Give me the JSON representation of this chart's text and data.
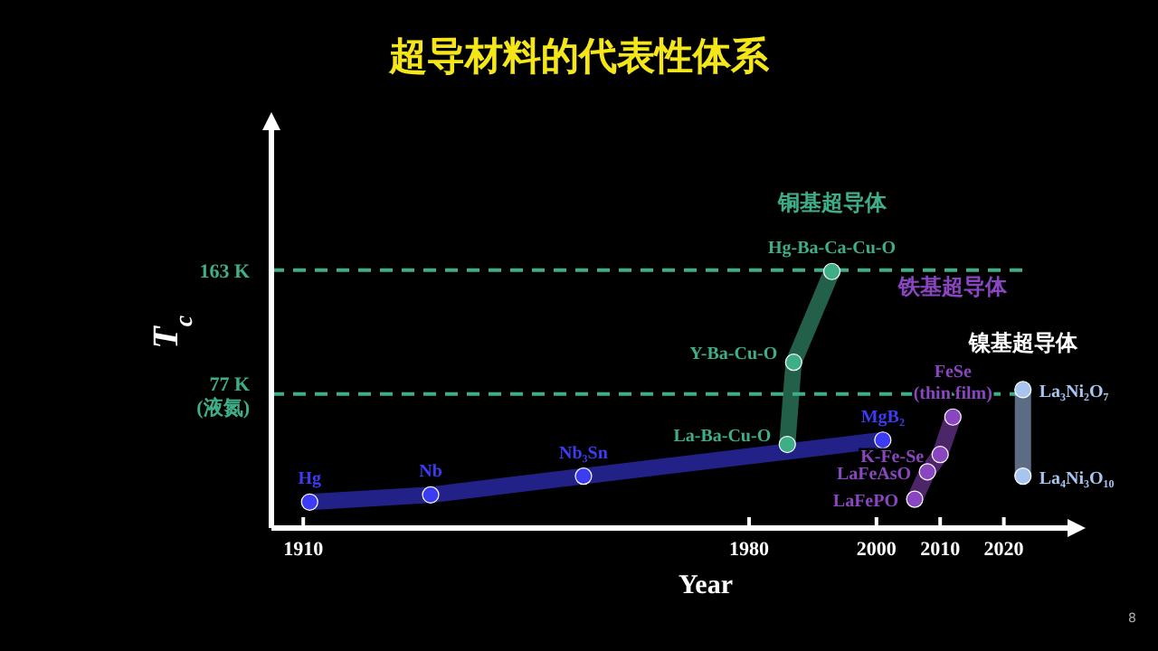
{
  "chart_data": {
    "type": "line",
    "marker": "circle",
    "title": "超导材料的代表性体系",
    "xlabel": "Year",
    "ylabel": "T$_{c}$",
    "xlim": [
      1905,
      2030
    ],
    "xticks": [
      1910,
      1980,
      2000,
      2010,
      2020
    ],
    "ylim": [
      -16,
      260
    ],
    "tick_labels": "x",
    "legend": false,
    "series": [
      {
        "color": "#3c3cf5",
        "x": [
          1911,
          1930,
          1954,
          2001
        ],
        "values": [
          2,
          7,
          20,
          45
        ]
      },
      {
        "name": "铜基超导体",
        "color": "#3fae86",
        "x": [
          1986,
          1987,
          1993
        ],
        "values": [
          42,
          99,
          162
        ]
      },
      {
        "name": "铁基超导体",
        "color": "#8a46c0",
        "x": [
          2006,
          2008,
          2010,
          2012
        ],
        "values": [
          4,
          23,
          35,
          61
        ]
      },
      {
        "name": "镍基超导体",
        "color": "#a8c4f0",
        "x": [
          2023,
          2023
        ],
        "values": [
          20,
          80
        ]
      }
    ],
    "ref_lines": [
      {
        "axis": "y",
        "value": 163,
        "label": "163 K",
        "color": "#3fae86",
        "line_style": "dashed"
      },
      {
        "axis": "y",
        "value": 77,
        "label": "77 K\n(液氮)",
        "color": "#3fae86",
        "line_style": "dashed"
      }
    ],
    "annotations": [
      {
        "text": "Hg",
        "x": 1911,
        "y": 2
      },
      {
        "text": "Nb",
        "x": 1930,
        "y": 7
      },
      {
        "text": "Nb₃Sn",
        "x": 1954,
        "y": 20
      },
      {
        "text": "MgB₂",
        "x": 2001,
        "y": 45
      },
      {
        "text": "La-Ba-Cu-O",
        "x": 1986,
        "y": 42
      },
      {
        "text": "Y-Ba-Cu-O",
        "x": 1987,
        "y": 99
      },
      {
        "text": "Hg-Ba-Ca-Cu-O",
        "x": 1993,
        "y": 162
      },
      {
        "text": "LaFePO",
        "x": 2006,
        "y": 4
      },
      {
        "text": "LaFeAsO",
        "x": 2008,
        "y": 23
      },
      {
        "text": "K-Fe-Se",
        "x": 2010,
        "y": 35
      },
      {
        "text": "FeSe\n(thin film)",
        "x": 2012,
        "y": 61
      },
      {
        "text": "La₄Ni₃O₁₀",
        "x": 2023,
        "y": 20
      },
      {
        "text": "La₃Ni₂O₇",
        "x": 2023,
        "y": 80
      },
      "8"
    ]
  }
}
